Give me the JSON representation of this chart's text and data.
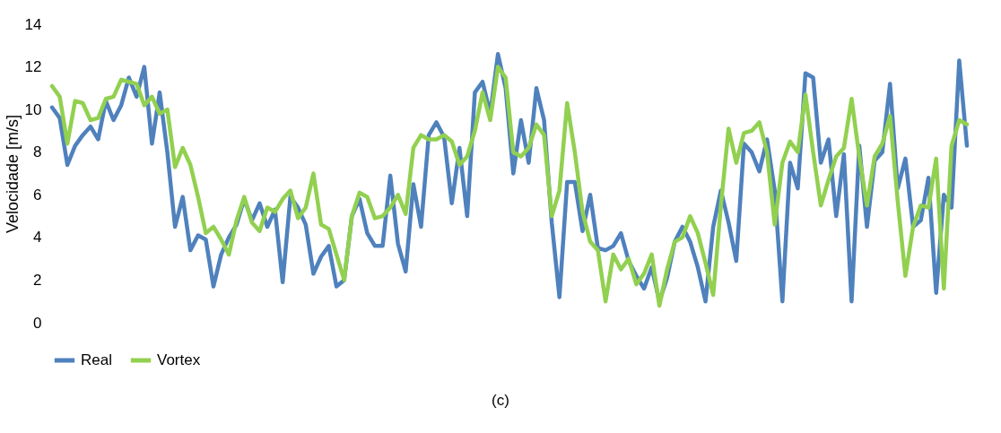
{
  "chart_data": {
    "type": "line",
    "ylabel": "Velocidade [m/s]",
    "annotations": [
      "(c)"
    ],
    "categories": [
      null,
      null,
      null,
      null,
      null,
      null,
      null,
      null,
      null,
      null,
      null,
      null,
      null,
      null,
      null,
      null,
      null,
      null,
      null,
      null,
      null,
      null,
      null,
      null,
      null,
      null,
      null,
      null,
      null,
      null,
      null,
      null,
      null,
      null,
      null,
      null,
      null,
      null,
      null,
      null,
      null,
      null,
      null,
      null,
      null,
      null,
      null,
      null,
      null,
      null,
      null,
      null,
      null,
      null,
      null,
      null,
      null,
      null,
      null,
      null,
      null,
      null,
      null,
      null,
      null,
      null,
      null,
      null,
      null,
      null,
      null,
      null,
      null,
      null,
      null,
      null,
      null,
      null,
      null,
      null,
      null,
      null,
      null,
      null,
      null,
      null,
      null,
      null,
      null,
      null,
      null,
      null,
      null,
      null,
      null,
      null,
      null,
      null,
      null,
      null,
      null,
      null,
      null,
      null,
      null,
      null,
      null,
      null,
      null,
      null,
      null,
      null,
      null,
      null,
      null,
      null,
      null,
      null,
      null,
      null
    ],
    "series": [
      {
        "name": "Real",
        "color": "#4f81bd",
        "values": [
          10.1,
          9.6,
          7.4,
          8.3,
          8.8,
          9.2,
          8.6,
          10.4,
          9.5,
          10.2,
          11.5,
          10.6,
          12.0,
          8.4,
          10.8,
          8.0,
          4.5,
          5.9,
          3.4,
          4.1,
          3.9,
          1.7,
          3.2,
          4.0,
          4.6,
          5.8,
          4.8,
          5.6,
          4.5,
          5.3,
          1.9,
          5.9,
          5.4,
          4.6,
          2.3,
          3.1,
          3.6,
          1.7,
          2.0,
          5.0,
          5.8,
          4.2,
          3.6,
          3.6,
          6.9,
          3.7,
          2.4,
          6.5,
          4.5,
          8.8,
          9.4,
          8.7,
          5.6,
          8.2,
          5.0,
          10.8,
          11.3,
          9.8,
          12.6,
          11.0,
          7.0,
          9.5,
          7.5,
          11.0,
          9.5,
          4.7,
          1.2,
          6.6,
          6.6,
          4.3,
          6.0,
          3.5,
          3.4,
          3.6,
          4.2,
          2.9,
          2.2,
          1.6,
          2.6,
          1.0,
          2.1,
          3.8,
          4.5,
          3.8,
          2.6,
          1.0,
          4.5,
          6.2,
          4.7,
          2.9,
          8.4,
          8.0,
          7.1,
          8.6,
          6.2,
          1.0,
          7.5,
          6.3,
          11.7,
          11.5,
          7.5,
          8.6,
          5.0,
          7.9,
          1.0,
          8.3,
          4.5,
          7.6,
          8.0,
          11.2,
          6.3,
          7.7,
          4.5,
          4.8,
          6.8,
          1.4,
          6.0,
          5.4,
          12.3,
          8.3
        ]
      },
      {
        "name": "Vortex",
        "color": "#92d050",
        "values": [
          11.1,
          10.6,
          8.4,
          10.4,
          10.3,
          9.5,
          9.6,
          10.5,
          10.6,
          11.4,
          11.3,
          11.2,
          10.2,
          10.6,
          9.8,
          10.0,
          7.3,
          8.2,
          7.4,
          5.9,
          4.2,
          4.5,
          3.9,
          3.2,
          4.8,
          5.9,
          4.7,
          4.3,
          5.4,
          5.2,
          5.8,
          6.2,
          4.9,
          5.4,
          7.0,
          4.6,
          4.4,
          3.2,
          2.0,
          5.0,
          6.1,
          5.9,
          4.9,
          5.0,
          5.4,
          6.0,
          5.1,
          8.2,
          8.8,
          8.6,
          8.6,
          8.8,
          8.5,
          7.4,
          7.8,
          9.0,
          10.8,
          9.5,
          12.0,
          11.5,
          8.0,
          7.8,
          8.2,
          9.3,
          8.8,
          5.0,
          6.2,
          10.3,
          8.0,
          5.2,
          3.8,
          3.4,
          1.0,
          3.2,
          2.5,
          3.0,
          1.8,
          2.3,
          3.2,
          0.8,
          2.5,
          3.8,
          4.0,
          5.0,
          4.2,
          2.8,
          1.3,
          5.5,
          9.1,
          7.5,
          8.9,
          9.0,
          9.4,
          8.0,
          4.6,
          7.5,
          8.5,
          8.0,
          10.7,
          8.0,
          5.5,
          6.7,
          7.8,
          8.2,
          10.5,
          7.8,
          5.5,
          7.8,
          8.4,
          9.7,
          5.7,
          2.2,
          4.5,
          5.5,
          5.4,
          7.7,
          1.6,
          8.3,
          9.5,
          9.3
        ]
      }
    ],
    "ylim": [
      0,
      14
    ],
    "yticks": [
      0,
      2,
      4,
      6,
      8,
      10,
      12,
      14
    ],
    "grid": false,
    "legend": "bottom",
    "tick_labels": "y",
    "line_style": "solid",
    "marker": "none"
  }
}
